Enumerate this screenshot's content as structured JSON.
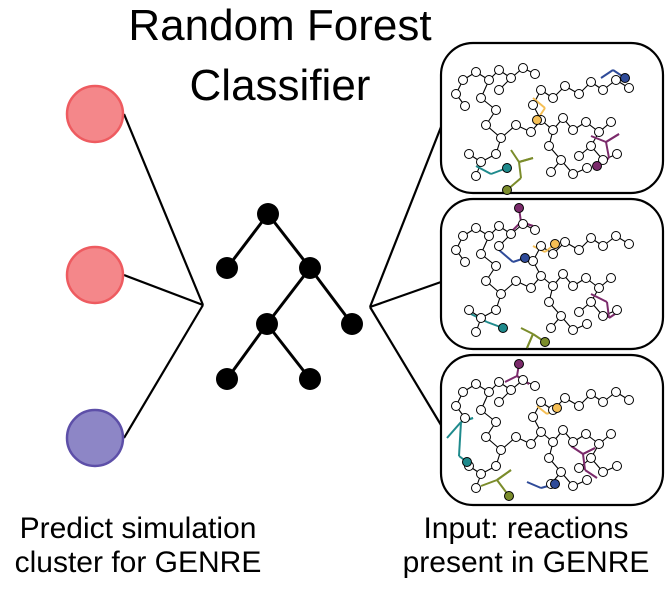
{
  "title": {
    "line1": "Random Forest",
    "line2": "Classifier"
  },
  "left_caption": {
    "line1": "Predict simulation",
    "line2": "cluster for GENRE"
  },
  "right_caption": {
    "line1": "Input: reactions",
    "line2": "present in GENRE"
  },
  "output_nodes": [
    {
      "fill": "#f4878a",
      "stroke": "#ee5b60"
    },
    {
      "fill": "#f4878a",
      "stroke": "#ee5b60"
    },
    {
      "fill": "#8d86c6",
      "stroke": "#5d4fa8"
    }
  ],
  "network_colors": {
    "purple": "#7b2a6b",
    "teal": "#1e8a8c",
    "olive": "#7b8c2b",
    "orange": "#f5bf55",
    "blue": "#2f4b99"
  }
}
